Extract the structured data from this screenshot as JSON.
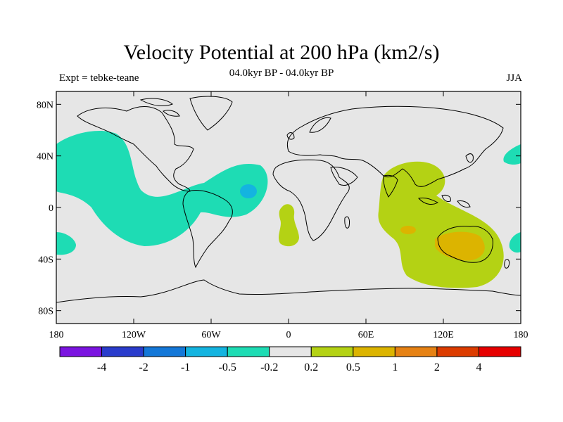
{
  "title": "Velocity Potential at 200 hPa (km2/s)",
  "subtitle": "04.0kyr BP - 04.0kyr BP",
  "left_label": "Expt = tebke-teane",
  "right_label": "JJA",
  "lat_ticks": [
    {
      "lat": 80,
      "label": "80N"
    },
    {
      "lat": 40,
      "label": "40N"
    },
    {
      "lat": 0,
      "label": "0"
    },
    {
      "lat": -40,
      "label": "40S"
    },
    {
      "lat": -80,
      "label": "80S"
    }
  ],
  "lon_ticks": [
    {
      "lon": -180,
      "label": "180"
    },
    {
      "lon": -120,
      "label": "120W"
    },
    {
      "lon": -60,
      "label": "60W"
    },
    {
      "lon": 0,
      "label": "0"
    },
    {
      "lon": 60,
      "label": "60E"
    },
    {
      "lon": 120,
      "label": "120E"
    },
    {
      "lon": 180,
      "label": "180"
    }
  ],
  "colorbar": {
    "colors": [
      "#7b14e0",
      "#2a3ccc",
      "#1478d8",
      "#14b4e0",
      "#1edcb4",
      "#e6e6e6",
      "#b4d214",
      "#dcb400",
      "#e68214",
      "#dc3c00",
      "#e60000"
    ],
    "labels": [
      "-4",
      "-2",
      "-1",
      "-0.5",
      "-0.2",
      "0.2",
      "0.5",
      "1",
      "2",
      "4"
    ]
  },
  "colors": {
    "background_field": "#e6e6e6",
    "negative_weak": "#1edcb4",
    "negative_mid": "#14b4e0",
    "positive_weak": "#b4d214",
    "positive_mid": "#dcb400",
    "positive_strong": "#e68214"
  }
}
